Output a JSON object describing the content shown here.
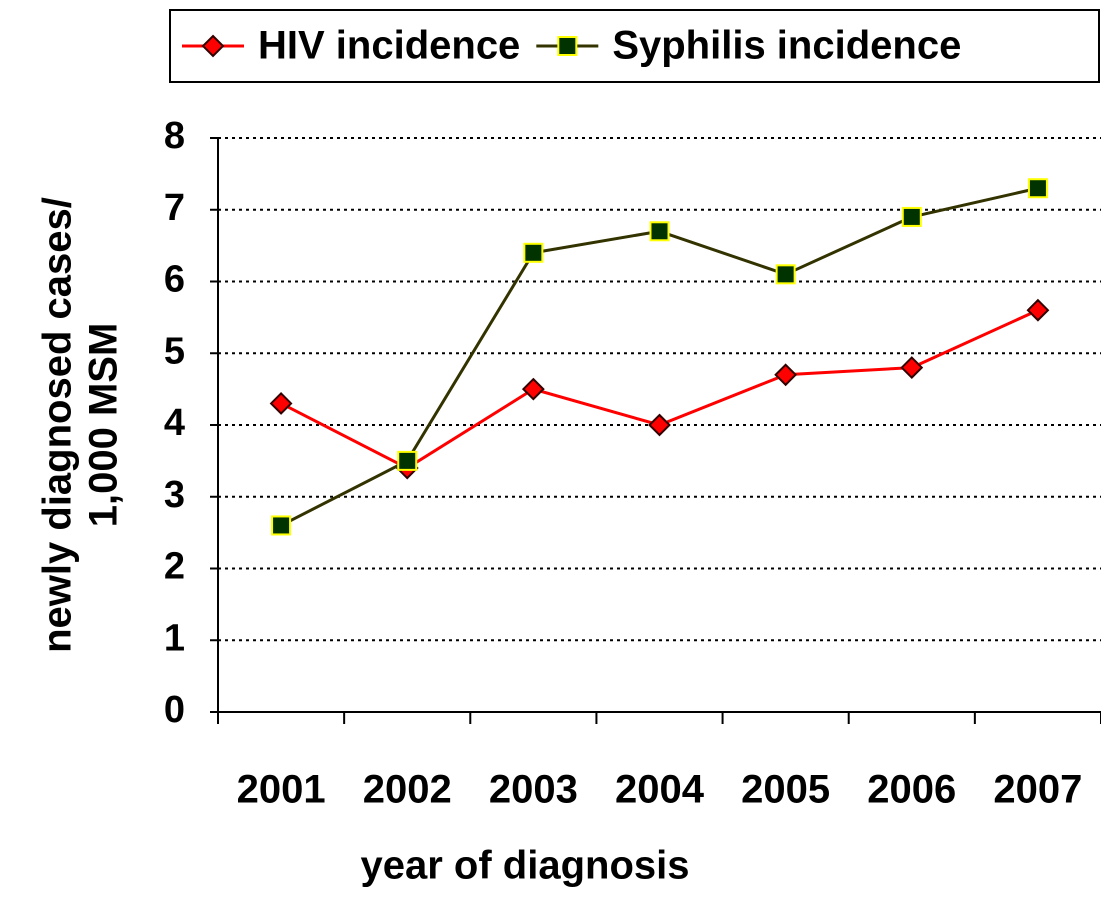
{
  "chart_data": {
    "type": "line",
    "x_label": "year of diagnosis",
    "y_label": [
      "newly diagnosed cases/",
      "1,000 MSM"
    ],
    "categories": [
      "2001",
      "2002",
      "2003",
      "2004",
      "2005",
      "2006",
      "2007"
    ],
    "series": [
      {
        "name": "HIV incidence",
        "color": "#ff0000",
        "marker": "diamond",
        "marker_color": "#ff0000",
        "marker_edge": "#330000",
        "values": [
          4.3,
          3.4,
          4.5,
          4.0,
          4.7,
          4.8,
          5.6
        ]
      },
      {
        "name": "Syphilis incidence",
        "color": "#333300",
        "marker": "square",
        "marker_color": "#003300",
        "marker_edge": "#ffff00",
        "values": [
          2.6,
          3.5,
          6.4,
          6.7,
          6.1,
          6.9,
          7.3
        ]
      }
    ],
    "ylim": [
      0,
      8
    ],
    "yticks": [
      0,
      1,
      2,
      3,
      4,
      5,
      6,
      7,
      8
    ],
    "grid": true,
    "legend": "top"
  }
}
